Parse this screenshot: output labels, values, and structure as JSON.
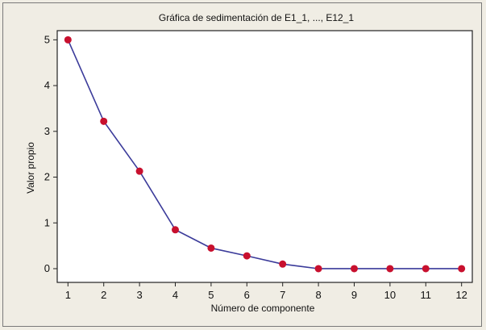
{
  "chart_data": {
    "type": "line",
    "title": "Gráfica de sedimentación de E1_1, ..., E12_1",
    "xlabel": "Número de componente",
    "ylabel": "Valor propio",
    "x": [
      1,
      2,
      3,
      4,
      5,
      6,
      7,
      8,
      9,
      10,
      11,
      12
    ],
    "series": [
      {
        "values": [
          5.0,
          3.22,
          2.13,
          0.85,
          0.45,
          0.28,
          0.1,
          0.0,
          0.0,
          0.0,
          0.0,
          0.0
        ]
      }
    ],
    "xlim": [
      0.7,
      12.3
    ],
    "ylim": [
      -0.3,
      5.2
    ],
    "xticks": [
      "1",
      "2",
      "3",
      "4",
      "5",
      "6",
      "7",
      "8",
      "9",
      "10",
      "11",
      "12"
    ],
    "yticks": [
      "0",
      "1",
      "2",
      "3",
      "4",
      "5"
    ],
    "grid": false,
    "colors": {
      "line": "#3b3b9a",
      "marker": "#c8102e",
      "background": "#f0ede4",
      "plot_background": "#ffffff"
    }
  }
}
